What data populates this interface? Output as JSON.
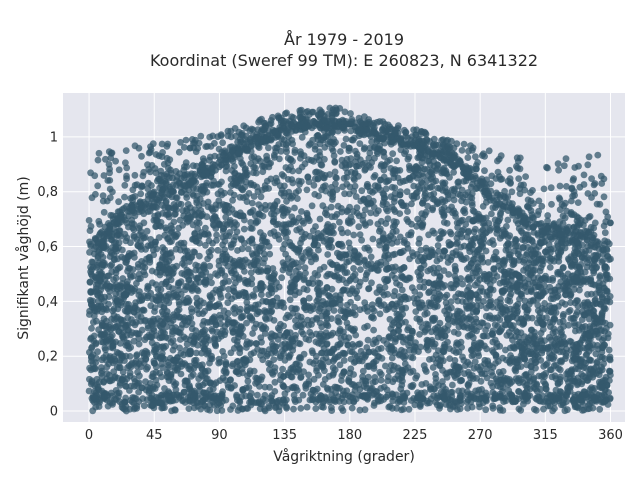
{
  "chart_data": {
    "type": "scatter",
    "title": [
      "År 1979 - 2019",
      "Koordinat (Sweref 99 TM): E 260823, N 6341322"
    ],
    "xlabel": "Vågriktning (grader)",
    "ylabel": "Signifikant våghöjd (m)",
    "xlim": [
      -18,
      370
    ],
    "ylim": [
      -0.04,
      1.16
    ],
    "xticks": [
      0,
      45,
      90,
      135,
      180,
      225,
      270,
      315,
      360
    ],
    "yticks": [
      0,
      0.2,
      0.4,
      0.6,
      0.8,
      1
    ],
    "ytick_labels": [
      "0",
      "0,2",
      "0,4",
      "0,6",
      "0,8",
      "1"
    ],
    "grid": true,
    "background": "#e5e6ee",
    "marker_color": "#34586c",
    "envelope": {
      "direction_deg": [
        0,
        10,
        20,
        30,
        45,
        60,
        75,
        90,
        105,
        120,
        135,
        150,
        160,
        170,
        180,
        195,
        210,
        225,
        240,
        255,
        270,
        285,
        300,
        315,
        330,
        345,
        360
      ],
      "dense_top_m": [
        0.62,
        0.66,
        0.72,
        0.76,
        0.8,
        0.84,
        0.88,
        0.93,
        0.98,
        1.02,
        1.05,
        1.07,
        1.07,
        1.07,
        1.06,
        1.04,
        1.02,
        1.0,
        0.97,
        0.92,
        0.85,
        0.78,
        0.72,
        0.69,
        0.68,
        0.66,
        0.62
      ],
      "outlier_top_m": [
        0.94,
        0.95,
        0.96,
        0.97,
        0.98,
        0.99,
        1.0,
        1.02,
        1.04,
        1.07,
        1.09,
        1.1,
        1.1,
        1.11,
        1.09,
        1.07,
        1.05,
        1.03,
        1.0,
        0.98,
        0.96,
        0.94,
        0.94,
        0.94,
        0.94,
        0.93,
        0.94
      ]
    }
  }
}
